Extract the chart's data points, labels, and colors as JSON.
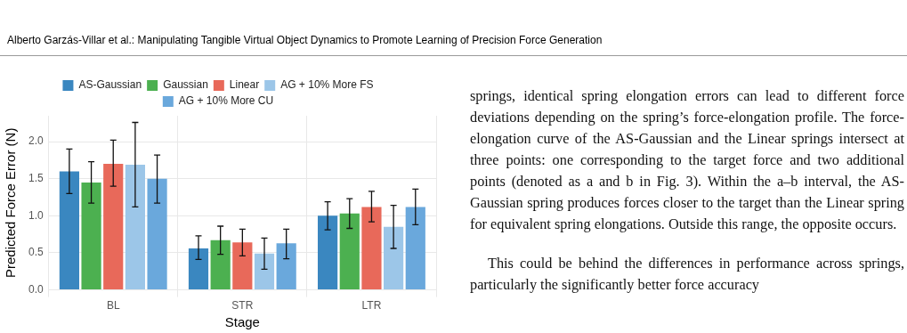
{
  "chart_data": {
    "type": "bar",
    "xlabel": "Stage",
    "ylabel": "Predicted Force Error (N)",
    "categories": [
      "BL",
      "STR",
      "LTR"
    ],
    "series": [
      {
        "name": "AS-Gaussian",
        "color": "#3a87c0",
        "values": [
          1.6,
          0.56,
          1.0
        ],
        "errors": [
          [
            1.3,
            1.9
          ],
          [
            0.41,
            0.73
          ],
          [
            0.81,
            1.19
          ]
        ]
      },
      {
        "name": "Gaussian",
        "color": "#4cb050",
        "values": [
          1.45,
          0.67,
          1.03
        ],
        "errors": [
          [
            1.17,
            1.73
          ],
          [
            0.48,
            0.86
          ],
          [
            0.83,
            1.23
          ]
        ]
      },
      {
        "name": "Linear",
        "color": "#e8695a",
        "values": [
          1.7,
          0.64,
          1.12
        ],
        "errors": [
          [
            1.4,
            2.02
          ],
          [
            0.46,
            0.82
          ],
          [
            0.92,
            1.33
          ]
        ]
      },
      {
        "name": "AG + 10% More FS",
        "color": "#9cc6e8",
        "values": [
          1.69,
          0.49,
          0.85
        ],
        "errors": [
          [
            1.12,
            2.26
          ],
          [
            0.28,
            0.7
          ],
          [
            0.56,
            1.14
          ]
        ]
      },
      {
        "name": "AG + 10% More CU",
        "color": "#6aa8dc",
        "values": [
          1.5,
          0.63,
          1.12
        ],
        "errors": [
          [
            1.17,
            1.82
          ],
          [
            0.42,
            0.82
          ],
          [
            0.88,
            1.36
          ]
        ]
      }
    ],
    "ylim": [
      0,
      2.35
    ],
    "yticks": [
      {
        "value": 0,
        "label": "0.0"
      },
      {
        "value": 0.5,
        "label": "0.5"
      },
      {
        "value": 1,
        "label": "1.0"
      },
      {
        "value": 1.5,
        "label": "1.5"
      },
      {
        "value": 2,
        "label": "2.0"
      }
    ],
    "grid": true,
    "legend": "top",
    "annotations": [
      "Alberto Garzás-Villar et al.: Manipulating Tangible Virtual Object Dynamics to Promote Learning of Precision Force Generation",
      "springs, identical spring elongation errors can lead to different force deviations depending on the spring’s force-elongation profile. The force-elongation curve of the AS-Gaussian and the Linear springs intersect at three points: one corresponding to the target force and two additional points (denoted as a and b in Fig. 3). Within the a–b interval, the AS-Gaussian spring produces forces closer to the target than the Linear spring for equivalent spring elongations. Outside this range, the opposite occurs.",
      "This could be behind the differences in performance across springs, particularly the significantly better force accuracy"
    ]
  }
}
